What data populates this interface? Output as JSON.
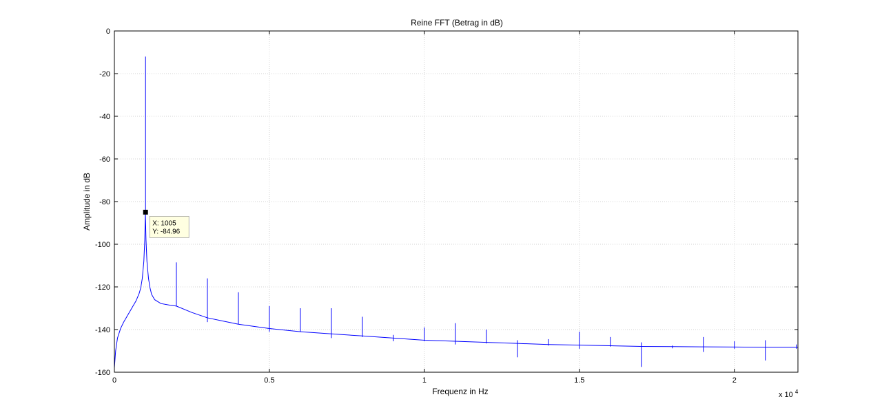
{
  "chart_data": {
    "type": "line",
    "title": "Reine FFT (Betrag in dB)",
    "xlabel": "Frequenz in Hz",
    "ylabel": "Amplitude in dB",
    "x_exponent_label": "x 10",
    "x_exponent_power": "4",
    "xlim": [
      0,
      22050
    ],
    "ylim": [
      -160,
      0
    ],
    "x_ticks": [
      0,
      5000,
      10000,
      15000,
      20000
    ],
    "x_tick_labels": [
      "0",
      "0.5",
      "1",
      "1.5",
      "2"
    ],
    "y_ticks": [
      0,
      -20,
      -40,
      -60,
      -80,
      -100,
      -120,
      -140,
      -160
    ],
    "y_tick_labels": [
      "0",
      "-20",
      "-40",
      "-60",
      "-80",
      "-100",
      "-120",
      "-140",
      "-160"
    ],
    "grid": true,
    "line_color": "#0000ff",
    "series": [
      {
        "x": [
          0,
          40,
          100,
          200,
          300,
          400,
          500,
          600,
          700,
          800,
          850,
          900,
          950,
          980,
          1000,
          1020,
          1050,
          1100,
          1150,
          1200,
          1300,
          1500,
          1800,
          2000,
          2500,
          3000,
          3500,
          4000,
          5000,
          6000,
          7000,
          8000,
          9000,
          10000,
          11000,
          12000,
          13000,
          14000,
          15000,
          16000,
          17000,
          18000,
          19000,
          20000,
          21000,
          22050
        ],
        "y": [
          -158,
          -150,
          -144,
          -139.5,
          -136.5,
          -134,
          -131.5,
          -129,
          -126.5,
          -123,
          -120.5,
          -116,
          -108,
          -98,
          -85,
          -98,
          -108,
          -116,
          -120.5,
          -123.5,
          -126,
          -127.8,
          -128.6,
          -129,
          -132,
          -134.5,
          -136,
          -137.5,
          -139.5,
          -141,
          -142,
          -143,
          -144,
          -145,
          -145.5,
          -146,
          -146.5,
          -147,
          -147.3,
          -147.6,
          -147.9,
          -148,
          -148.1,
          -148.2,
          -148.3,
          -148.3
        ]
      }
    ],
    "spikes": [
      {
        "x": 1005,
        "top": -12,
        "bottom": -85
      },
      {
        "x": 2000,
        "top": -108.5,
        "bottom": -129
      },
      {
        "x": 3000,
        "top": -116,
        "bottom": -136.5
      },
      {
        "x": 4000,
        "top": -122.5,
        "bottom": -137.5
      },
      {
        "x": 5000,
        "top": -129,
        "bottom": -141
      },
      {
        "x": 6000,
        "top": -130,
        "bottom": -141
      },
      {
        "x": 7000,
        "top": -130,
        "bottom": -144
      },
      {
        "x": 8000,
        "top": -134,
        "bottom": -143.5
      },
      {
        "x": 9000,
        "top": -142.5,
        "bottom": -145.5
      },
      {
        "x": 10000,
        "top": -139,
        "bottom": -145.5
      },
      {
        "x": 11000,
        "top": -137,
        "bottom": -147
      },
      {
        "x": 12000,
        "top": -140,
        "bottom": -146.5
      },
      {
        "x": 13000,
        "top": -145,
        "bottom": -153
      },
      {
        "x": 14000,
        "top": -144.5,
        "bottom": -147.5
      },
      {
        "x": 15000,
        "top": -141,
        "bottom": -149
      },
      {
        "x": 16000,
        "top": -143.5,
        "bottom": -148
      },
      {
        "x": 17000,
        "top": -146,
        "bottom": -157.5
      },
      {
        "x": 18000,
        "top": -147.5,
        "bottom": -148.8
      },
      {
        "x": 19000,
        "top": -143.5,
        "bottom": -150.5
      },
      {
        "x": 20000,
        "top": -145.5,
        "bottom": -149
      },
      {
        "x": 21000,
        "top": -145,
        "bottom": -154.5
      },
      {
        "x": 22000,
        "top": -147,
        "bottom": -149
      }
    ],
    "datatip": {
      "x_text": "X: 1005",
      "y_text": "Y: -84.96",
      "x": 1005,
      "y": -84.96
    }
  }
}
